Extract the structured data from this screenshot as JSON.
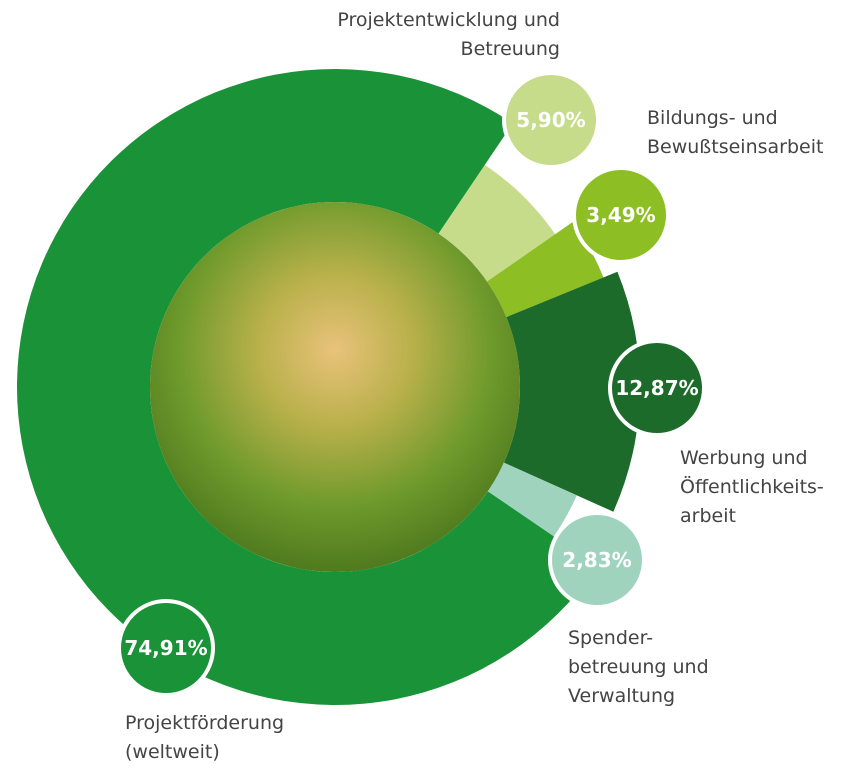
{
  "chart_data": {
    "type": "donut",
    "categories": [
      "Projektentwicklung und\nBetreuung",
      "Bildungs- und\nBewußtseinsarbeit",
      "Werbung und\nÖffentlichkeits-\narbeit",
      "Spender-\nbetreuung und\nVerwaltung",
      "Projektförderung\n(weltweit)"
    ],
    "values": [
      5.9,
      3.49,
      12.87,
      2.83,
      74.91
    ],
    "value_labels": [
      "5,90%",
      "3,49%",
      "12,87%",
      "2,83%",
      "74,91%"
    ],
    "colors": [
      "#c6dc8b",
      "#8dbf24",
      "#1d6b2a",
      "#a0d3bd",
      "#1a9338"
    ]
  }
}
